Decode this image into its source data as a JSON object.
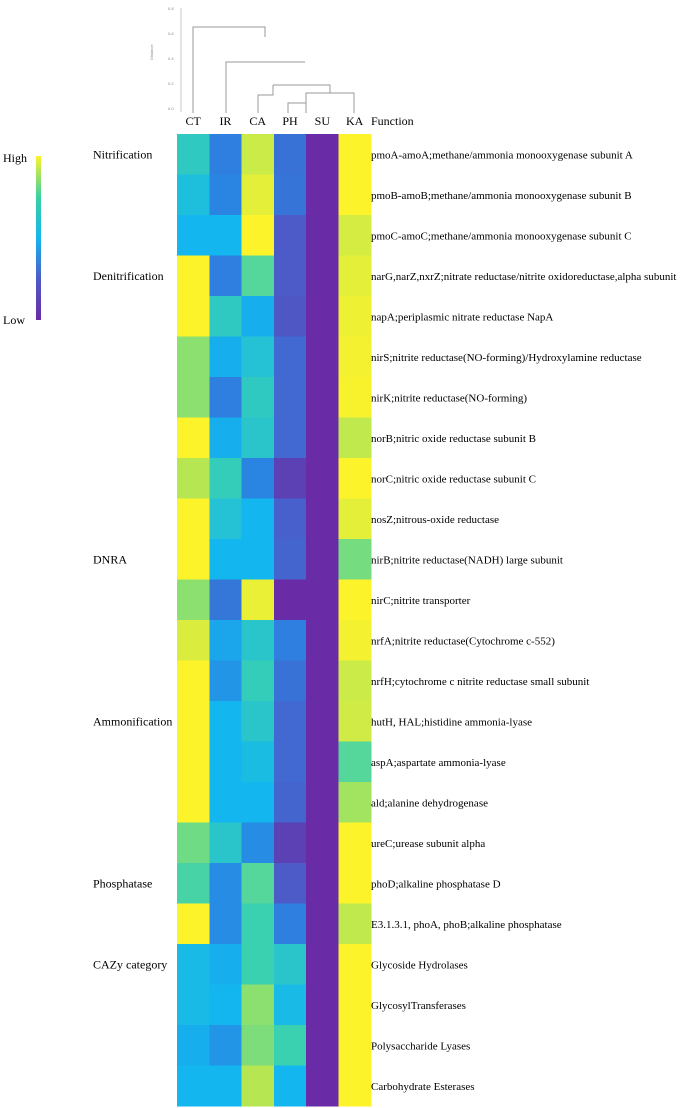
{
  "chart_data": {
    "type": "heatmap",
    "columns": [
      "CT",
      "IR",
      "CA",
      "PH",
      "SU",
      "KA"
    ],
    "function_header": "Function",
    "dendrogram_axis_label": "Distance",
    "dendrogram_ticks": [
      "0.8",
      "0.6",
      "0.4",
      "0.2",
      "0.0"
    ],
    "legend": {
      "high_label": "High",
      "low_label": "Low",
      "colors": [
        "#fdf32a",
        "#3ad1a0",
        "#13b6ef",
        "#4c5bc8",
        "#6a2ca6"
      ]
    },
    "categories": [
      {
        "label": "Nitrification",
        "row": 0
      },
      {
        "label": "Denitrification",
        "row": 3
      },
      {
        "label": "DNRA",
        "row": 10
      },
      {
        "label": "Ammonification",
        "row": 14
      },
      {
        "label": "Phosphatase",
        "row": 18
      },
      {
        "label": "CAZy category",
        "row": 20
      }
    ],
    "rows": [
      {
        "function": "pmoA-amoA;methane/ammonia monooxygenase  subunit A",
        "values": [
          0.62,
          0.38,
          0.9,
          0.32,
          0.0,
          1.0
        ]
      },
      {
        "function": "pmoB-amoB;methane/ammonia monooxygenase  subunit B",
        "values": [
          0.56,
          0.4,
          0.95,
          0.33,
          0.0,
          1.0
        ]
      },
      {
        "function": "pmoC-amoC;methane/ammonia monooxygenase  subunit C",
        "values": [
          0.52,
          0.52,
          1.0,
          0.22,
          0.0,
          0.92
        ]
      },
      {
        "function": "narG,narZ,nxrZ;nitrate reductase/nitrite oxidoreductase,alpha subunit",
        "values": [
          1.0,
          0.38,
          0.7,
          0.22,
          0.0,
          0.95
        ]
      },
      {
        "function": "napA;periplasmic nitrate reductase NapA",
        "values": [
          1.0,
          0.62,
          0.5,
          0.2,
          0.0,
          0.97
        ]
      },
      {
        "function": "nirS;nitrite reductase(NO-forming)/Hydroxylamine reductase",
        "values": [
          0.78,
          0.5,
          0.58,
          0.28,
          0.0,
          0.98
        ]
      },
      {
        "function": "nirK;nitrite reductase(NO-forming)",
        "values": [
          0.78,
          0.38,
          0.62,
          0.28,
          0.0,
          0.99
        ]
      },
      {
        "function": "norB;nitric oxide reductase subunit B",
        "values": [
          1.0,
          0.5,
          0.6,
          0.28,
          0.0,
          0.88
        ]
      },
      {
        "function": "norC;nitric oxide reductase subunit C",
        "values": [
          0.86,
          0.64,
          0.4,
          0.1,
          0.0,
          1.0
        ]
      },
      {
        "function": "nosZ;nitrous-oxide reductase",
        "values": [
          1.0,
          0.58,
          0.52,
          0.24,
          0.0,
          0.95
        ]
      },
      {
        "function": "nirB;nitrite reductase(NADH) large subunit",
        "values": [
          1.0,
          0.52,
          0.52,
          0.26,
          0.0,
          0.75
        ]
      },
      {
        "function": "nirC;nitrite transporter",
        "values": [
          0.78,
          0.34,
          0.96,
          0.0,
          0.0,
          1.0
        ]
      },
      {
        "function": "nrfA;nitrite reductase(Cytochrome c-552)",
        "values": [
          0.93,
          0.48,
          0.6,
          0.38,
          0.0,
          0.98
        ]
      },
      {
        "function": "nrfH;cytochrome c nitrite reductase small subunit",
        "values": [
          1.0,
          0.44,
          0.64,
          0.32,
          0.0,
          0.9
        ]
      },
      {
        "function": "hutH, HAL;histidine ammonia-lyase",
        "values": [
          1.0,
          0.52,
          0.6,
          0.28,
          0.0,
          0.91
        ]
      },
      {
        "function": "aspA;aspartate ammonia-lyase",
        "values": [
          1.0,
          0.52,
          0.55,
          0.28,
          0.0,
          0.7
        ]
      },
      {
        "function": "ald;alanine dehydrogenase",
        "values": [
          1.0,
          0.52,
          0.52,
          0.26,
          0.0,
          0.82
        ]
      },
      {
        "function": "ureC;urease subunit alpha",
        "values": [
          0.74,
          0.6,
          0.42,
          0.1,
          0.0,
          1.0
        ]
      },
      {
        "function": "phoD;alkaline phosphatase D",
        "values": [
          0.68,
          0.42,
          0.7,
          0.22,
          0.0,
          1.0
        ]
      },
      {
        "function": "E3.1.3.1, phoA, phoB;alkaline phosphatase",
        "values": [
          1.0,
          0.42,
          0.66,
          0.38,
          0.0,
          0.88
        ]
      },
      {
        "function": "Glycoside Hydrolases",
        "values": [
          0.54,
          0.5,
          0.66,
          0.6,
          0.0,
          1.0
        ]
      },
      {
        "function": "GlycosylTransferases",
        "values": [
          0.54,
          0.52,
          0.78,
          0.54,
          0.0,
          1.0
        ]
      },
      {
        "function": "Polysaccharide Lyases",
        "values": [
          0.5,
          0.44,
          0.76,
          0.66,
          0.0,
          1.0
        ]
      },
      {
        "function": "Carbohydrate Esterases",
        "values": [
          0.52,
          0.52,
          0.86,
          0.52,
          0.0,
          1.0
        ]
      }
    ]
  }
}
